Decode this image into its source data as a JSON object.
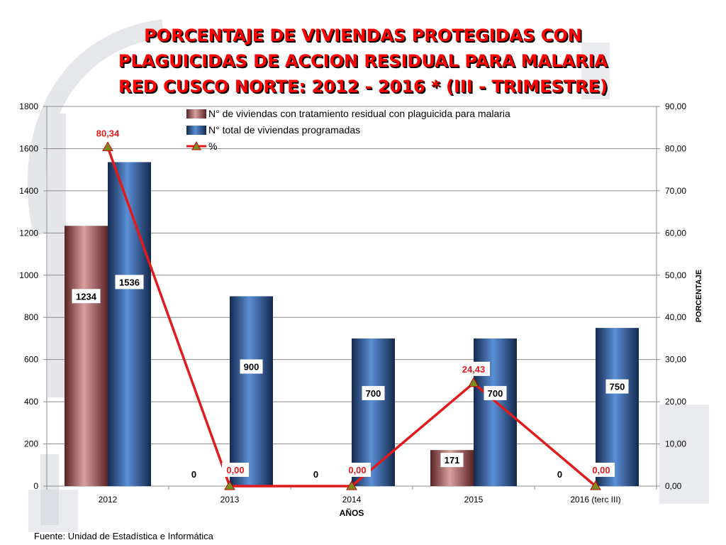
{
  "page": {
    "source": "Fuente: Unidad de Estadística e Informática"
  },
  "colors": {
    "title": "#ff0000",
    "series_treated": "#c77373",
    "series_programmed": "#2f5fa6",
    "series_percent": "#e31a1c",
    "marker": "#7a8c1e",
    "watermark": "#c9cdd3"
  },
  "chart_data": {
    "type": "bar",
    "title_lines": [
      "PORCENTAJE DE VIVIENDAS PROTEGIDAS CON",
      "PLAGUICIDAS DE ACCION RESIDUAL PARA MALARIA",
      "RED CUSCO NORTE: 2012 - 2016 * (III - TRIMESTRE)"
    ],
    "xlabel": "AÑOS",
    "ylabel": "",
    "y2label": "PORCENTAJE",
    "categories": [
      "2012",
      "2013",
      "2014",
      "2015",
      "2016 (terc III)"
    ],
    "ylim": [
      0,
      1800
    ],
    "yticks": [
      "0",
      "200",
      "400",
      "600",
      "800",
      "1000",
      "1200",
      "1400",
      "1600",
      "1800"
    ],
    "y2lim": [
      0,
      90
    ],
    "y2ticks": [
      "0,00",
      "10,00",
      "20,00",
      "30,00",
      "40,00",
      "50,00",
      "60,00",
      "70,00",
      "80,00",
      "90,00"
    ],
    "grid": true,
    "legend_position": "top",
    "series": [
      {
        "name": "N° de viviendas con tratamiento residual con plaguicida  para malaria",
        "kind": "bar",
        "axis": "left",
        "values": [
          1234,
          0,
          0,
          171,
          0
        ],
        "labels": [
          "1234",
          "0",
          "0",
          "171",
          "0"
        ]
      },
      {
        "name": "N° total de viviendas programadas",
        "kind": "bar",
        "axis": "left",
        "values": [
          1536,
          900,
          700,
          700,
          750
        ],
        "labels": [
          "1536",
          "900",
          "700",
          "700",
          "750"
        ]
      },
      {
        "name": "%",
        "kind": "line",
        "axis": "right",
        "values": [
          80.34,
          0.0,
          0.0,
          24.43,
          0.0
        ],
        "labels": [
          "80,34",
          "0,00",
          "0,00",
          "24,43",
          "0,00"
        ]
      }
    ]
  }
}
